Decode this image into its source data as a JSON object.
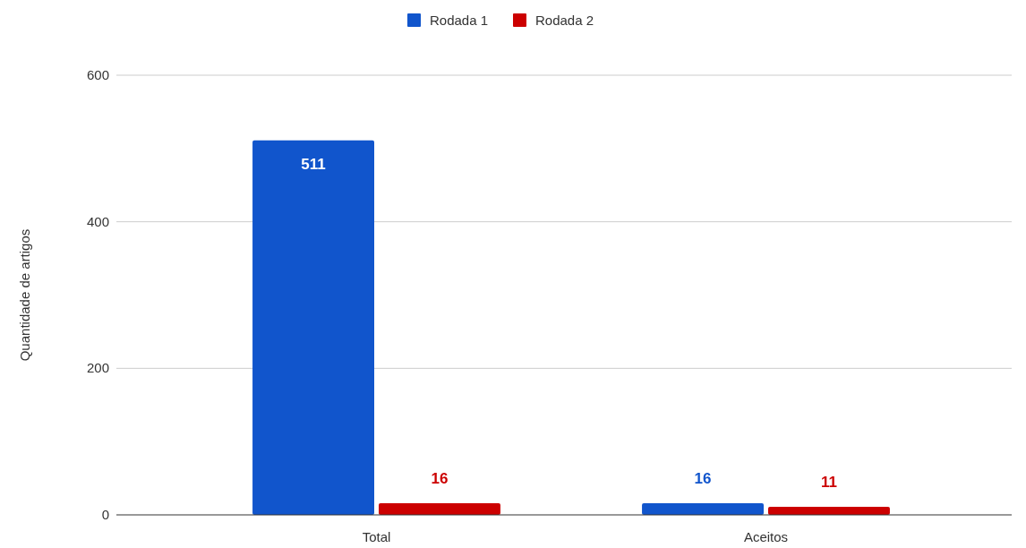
{
  "chart_data": {
    "type": "bar",
    "ylabel": "Quantidade de artigos",
    "categories": [
      "Total",
      "Aceitos"
    ],
    "series": [
      {
        "name": "Rodada 1",
        "color": "#1155cc",
        "values": [
          511,
          16
        ]
      },
      {
        "name": "Rodada 2",
        "color": "#cc0000",
        "values": [
          16,
          11
        ]
      }
    ],
    "ylim": [
      0,
      600
    ],
    "yticks": [
      0,
      200,
      400,
      600
    ],
    "grid": "y",
    "legend": "top",
    "data_labels": true
  }
}
